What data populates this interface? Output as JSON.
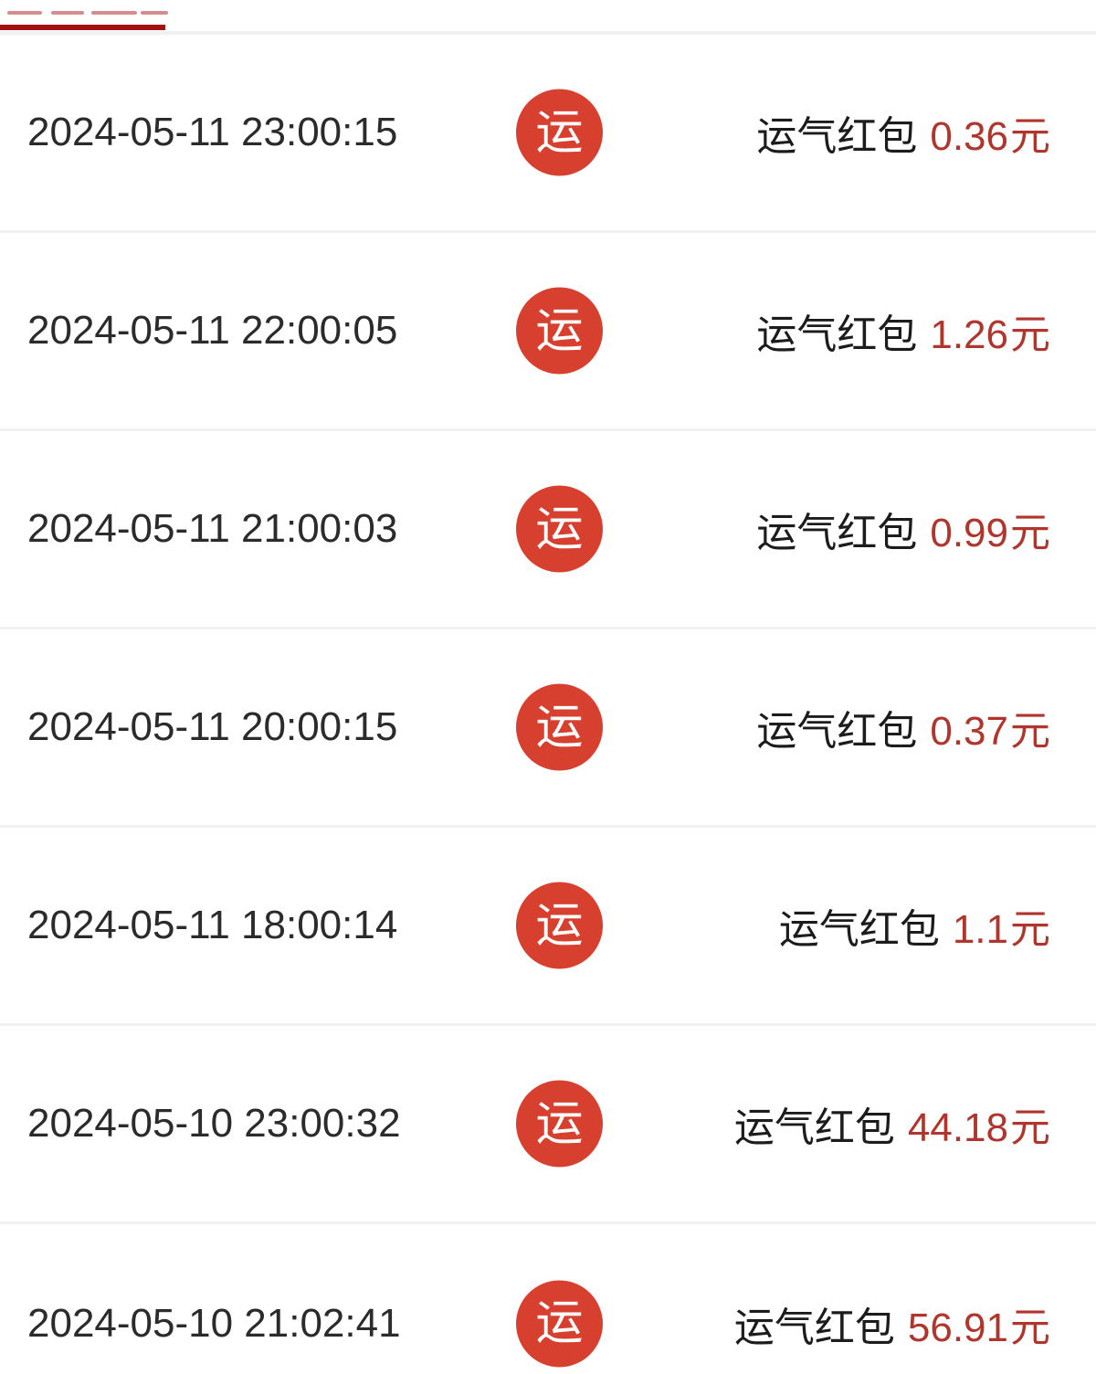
{
  "theme": {
    "underline-red": "#a01212",
    "separator": "#f1f1f1",
    "icon-red": "#d7402e",
    "amount-red": "#b0362d",
    "time-color": "#2b2b2b",
    "label-color": "#1c1c1c"
  },
  "tabbar": {
    "note_visible_text": ""
  },
  "list": {
    "icon_glyph": "运",
    "label": "运气红包",
    "currency_unit": "元",
    "rows": [
      {
        "time": "2024-05-11 23:00:15",
        "amount": "0.36"
      },
      {
        "time": "2024-05-11 22:00:05",
        "amount": "1.26"
      },
      {
        "time": "2024-05-11 21:00:03",
        "amount": "0.99"
      },
      {
        "time": "2024-05-11 20:00:15",
        "amount": "0.37"
      },
      {
        "time": "2024-05-11 18:00:14",
        "amount": "1.1"
      },
      {
        "time": "2024-05-10 23:00:32",
        "amount": "44.18"
      },
      {
        "time": "2024-05-10 21:02:41",
        "amount": "56.91"
      }
    ]
  }
}
